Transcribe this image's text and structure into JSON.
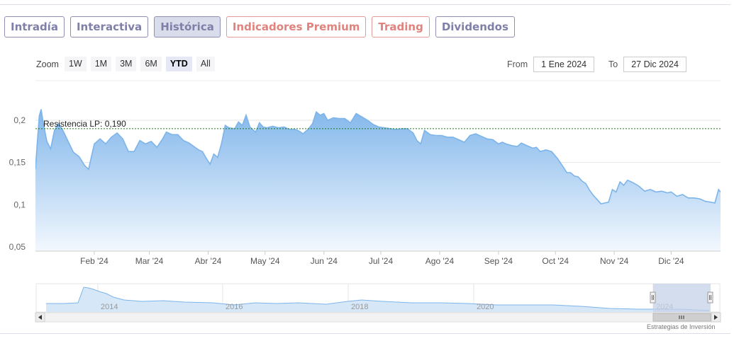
{
  "tabs": [
    {
      "label": "Intradía",
      "style": "purple"
    },
    {
      "label": "Interactiva",
      "style": "purple"
    },
    {
      "label": "Histórica",
      "style": "purple",
      "active": true
    },
    {
      "label": "Indicadores Premium",
      "style": "red"
    },
    {
      "label": "Trading",
      "style": "red"
    },
    {
      "label": "Dividendos",
      "style": "purple"
    }
  ],
  "zoom": {
    "label": "Zoom",
    "buttons": [
      "1W",
      "1M",
      "3M",
      "6M",
      "YTD",
      "All"
    ],
    "selected": "YTD"
  },
  "range": {
    "from_label": "From",
    "from_value": "1 Ene 2024",
    "to_label": "To",
    "to_value": "27 Dic 2024"
  },
  "credit": "Estrategias de Inversión",
  "colors": {
    "line": "#7db4ea",
    "fill_top": "#7db4ea",
    "fill_bottom": "#f3f8fe",
    "resistance": "#1e7a1e",
    "navigator_mask": "#c6d1e8"
  },
  "chart_data": {
    "type": "area",
    "title": "",
    "xlabel": "",
    "ylabel": "",
    "ylim": [
      0.05,
      0.2
    ],
    "y_ticks": [
      "0,05",
      "0,1",
      "0,15",
      "0,2"
    ],
    "x_ticks": [
      "Feb '24",
      "Mar '24",
      "Abr '24",
      "May '24",
      "Jun '24",
      "Jul '24",
      "Ago '24",
      "Sep '24",
      "Oct '24",
      "Nov '24",
      "Dic '24"
    ],
    "x_tick_dates": [
      "2024-02-01",
      "2024-03-01",
      "2024-04-01",
      "2024-05-01",
      "2024-06-01",
      "2024-07-01",
      "2024-08-01",
      "2024-09-01",
      "2024-10-01",
      "2024-11-01",
      "2024-12-01"
    ],
    "x_range": [
      "2024-01-01",
      "2024-12-27"
    ],
    "annotation": {
      "label": "Resistencia LP: 0,190",
      "value": 0.19
    },
    "series": [
      {
        "points": [
          [
            "2024-01-01",
            0.142
          ],
          [
            "2024-01-02",
            0.175
          ],
          [
            "2024-01-03",
            0.205
          ],
          [
            "2024-01-04",
            0.213
          ],
          [
            "2024-01-05",
            0.198
          ],
          [
            "2024-01-07",
            0.175
          ],
          [
            "2024-01-09",
            0.166
          ],
          [
            "2024-01-11",
            0.188
          ],
          [
            "2024-01-13",
            0.196
          ],
          [
            "2024-01-15",
            0.19
          ],
          [
            "2024-01-18",
            0.176
          ],
          [
            "2024-01-21",
            0.162
          ],
          [
            "2024-01-24",
            0.157
          ],
          [
            "2024-01-27",
            0.146
          ],
          [
            "2024-01-29",
            0.142
          ],
          [
            "2024-02-01",
            0.172
          ],
          [
            "2024-02-04",
            0.178
          ],
          [
            "2024-02-07",
            0.172
          ],
          [
            "2024-02-10",
            0.18
          ],
          [
            "2024-02-13",
            0.185
          ],
          [
            "2024-02-16",
            0.178
          ],
          [
            "2024-02-19",
            0.163
          ],
          [
            "2024-02-22",
            0.163
          ],
          [
            "2024-02-25",
            0.176
          ],
          [
            "2024-02-28",
            0.172
          ],
          [
            "2024-03-02",
            0.175
          ],
          [
            "2024-03-05",
            0.168
          ],
          [
            "2024-03-08",
            0.178
          ],
          [
            "2024-03-10",
            0.186
          ],
          [
            "2024-03-13",
            0.183
          ],
          [
            "2024-03-16",
            0.183
          ],
          [
            "2024-03-19",
            0.176
          ],
          [
            "2024-03-22",
            0.173
          ],
          [
            "2024-03-25",
            0.168
          ],
          [
            "2024-03-27",
            0.165
          ],
          [
            "2024-03-29",
            0.163
          ],
          [
            "2024-03-31",
            0.155
          ],
          [
            "2024-04-02",
            0.148
          ],
          [
            "2024-04-04",
            0.16
          ],
          [
            "2024-04-06",
            0.156
          ],
          [
            "2024-04-08",
            0.172
          ],
          [
            "2024-04-10",
            0.194
          ],
          [
            "2024-04-12",
            0.191
          ],
          [
            "2024-04-15",
            0.19
          ],
          [
            "2024-04-17",
            0.198
          ],
          [
            "2024-04-19",
            0.194
          ],
          [
            "2024-04-21",
            0.206
          ],
          [
            "2024-04-23",
            0.192
          ],
          [
            "2024-04-26",
            0.186
          ],
          [
            "2024-04-28",
            0.197
          ],
          [
            "2024-04-30",
            0.192
          ],
          [
            "2024-05-02",
            0.191
          ],
          [
            "2024-05-05",
            0.193
          ],
          [
            "2024-05-08",
            0.191
          ],
          [
            "2024-05-11",
            0.192
          ],
          [
            "2024-05-14",
            0.189
          ],
          [
            "2024-05-17",
            0.189
          ],
          [
            "2024-05-19",
            0.187
          ],
          [
            "2024-05-21",
            0.184
          ],
          [
            "2024-05-24",
            0.19
          ],
          [
            "2024-05-26",
            0.196
          ],
          [
            "2024-05-28",
            0.21
          ],
          [
            "2024-05-30",
            0.206
          ],
          [
            "2024-06-01",
            0.208
          ],
          [
            "2024-06-03",
            0.2
          ],
          [
            "2024-06-06",
            0.203
          ],
          [
            "2024-06-09",
            0.202
          ],
          [
            "2024-06-12",
            0.202
          ],
          [
            "2024-06-15",
            0.197
          ],
          [
            "2024-06-18",
            0.208
          ],
          [
            "2024-06-21",
            0.204
          ],
          [
            "2024-06-24",
            0.2
          ],
          [
            "2024-06-27",
            0.195
          ],
          [
            "2024-06-30",
            0.192
          ],
          [
            "2024-07-03",
            0.191
          ],
          [
            "2024-07-06",
            0.19
          ],
          [
            "2024-07-09",
            0.189
          ],
          [
            "2024-07-12",
            0.19
          ],
          [
            "2024-07-15",
            0.19
          ],
          [
            "2024-07-18",
            0.185
          ],
          [
            "2024-07-20",
            0.176
          ],
          [
            "2024-07-22",
            0.172
          ],
          [
            "2024-07-24",
            0.188
          ],
          [
            "2024-07-27",
            0.183
          ],
          [
            "2024-07-30",
            0.182
          ],
          [
            "2024-08-02",
            0.182
          ],
          [
            "2024-08-05",
            0.18
          ],
          [
            "2024-08-08",
            0.18
          ],
          [
            "2024-08-11",
            0.177
          ],
          [
            "2024-08-14",
            0.174
          ],
          [
            "2024-08-17",
            0.182
          ],
          [
            "2024-08-20",
            0.184
          ],
          [
            "2024-08-23",
            0.181
          ],
          [
            "2024-08-26",
            0.178
          ],
          [
            "2024-08-29",
            0.177
          ],
          [
            "2024-09-01",
            0.172
          ],
          [
            "2024-09-03",
            0.174
          ],
          [
            "2024-09-05",
            0.172
          ],
          [
            "2024-09-08",
            0.17
          ],
          [
            "2024-09-11",
            0.169
          ],
          [
            "2024-09-13",
            0.173
          ],
          [
            "2024-09-16",
            0.17
          ],
          [
            "2024-09-19",
            0.167
          ],
          [
            "2024-09-21",
            0.168
          ],
          [
            "2024-09-23",
            0.163
          ],
          [
            "2024-09-26",
            0.165
          ],
          [
            "2024-09-29",
            0.163
          ],
          [
            "2024-10-02",
            0.155
          ],
          [
            "2024-10-05",
            0.145
          ],
          [
            "2024-10-07",
            0.138
          ],
          [
            "2024-10-09",
            0.138
          ],
          [
            "2024-10-11",
            0.134
          ],
          [
            "2024-10-13",
            0.133
          ],
          [
            "2024-10-15",
            0.128
          ],
          [
            "2024-10-17",
            0.125
          ],
          [
            "2024-10-19",
            0.117
          ],
          [
            "2024-10-21",
            0.111
          ],
          [
            "2024-10-23",
            0.106
          ],
          [
            "2024-10-25",
            0.101
          ],
          [
            "2024-10-27",
            0.102
          ],
          [
            "2024-10-29",
            0.103
          ],
          [
            "2024-10-31",
            0.118
          ],
          [
            "2024-11-02",
            0.115
          ],
          [
            "2024-11-04",
            0.127
          ],
          [
            "2024-11-06",
            0.123
          ],
          [
            "2024-11-08",
            0.129
          ],
          [
            "2024-11-11",
            0.126
          ],
          [
            "2024-11-14",
            0.122
          ],
          [
            "2024-11-17",
            0.116
          ],
          [
            "2024-11-20",
            0.118
          ],
          [
            "2024-11-23",
            0.115
          ],
          [
            "2024-11-26",
            0.116
          ],
          [
            "2024-11-29",
            0.114
          ],
          [
            "2024-12-01",
            0.115
          ],
          [
            "2024-12-04",
            0.11
          ],
          [
            "2024-12-07",
            0.112
          ],
          [
            "2024-12-10",
            0.108
          ],
          [
            "2024-12-13",
            0.108
          ],
          [
            "2024-12-16",
            0.107
          ],
          [
            "2024-12-19",
            0.104
          ],
          [
            "2024-12-22",
            0.103
          ],
          [
            "2024-12-24",
            0.102
          ],
          [
            "2024-12-26",
            0.118
          ],
          [
            "2024-12-27",
            0.115
          ]
        ]
      }
    ],
    "navigator": {
      "x_labels": [
        "2014",
        "2016",
        "2018",
        "2020",
        "2024"
      ]
    }
  }
}
